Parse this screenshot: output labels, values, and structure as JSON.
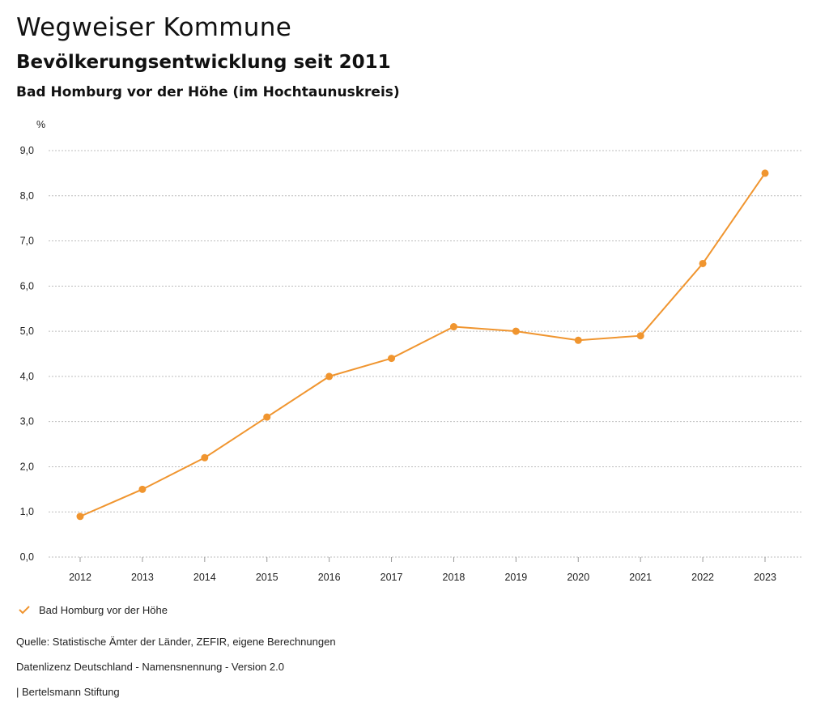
{
  "header": {
    "title": "Wegweiser Kommune",
    "subtitle": "Bevölkerungsentwicklung seit 2011",
    "region": "Bad Homburg vor der Höhe (im Hochtaunuskreis)"
  },
  "chart_data": {
    "type": "line",
    "unit_label": "%",
    "x": [
      "2012",
      "2013",
      "2014",
      "2015",
      "2016",
      "2017",
      "2018",
      "2019",
      "2020",
      "2021",
      "2022",
      "2023"
    ],
    "series": [
      {
        "name": "Bad Homburg vor der Höhe",
        "color": "#f0952f",
        "values": [
          0.9,
          1.5,
          2.2,
          3.1,
          4.0,
          4.4,
          5.1,
          5.0,
          4.8,
          4.9,
          6.5,
          8.5
        ]
      }
    ],
    "ylim": [
      0,
      9
    ],
    "yticks": [
      "0,0",
      "1,0",
      "2,0",
      "3,0",
      "4,0",
      "5,0",
      "6,0",
      "7,0",
      "8,0",
      "9,0"
    ],
    "grid": true,
    "legend_position": "bottom-left"
  },
  "legend": {
    "label": "Bad Homburg vor der Höhe",
    "icon": "check-icon"
  },
  "footer": {
    "source": "Quelle: Statistische Ämter der Länder, ZEFIR, eigene Berechnungen",
    "license": "Datenlizenz Deutschland - Namensnennung - Version 2.0",
    "publisher": "| Bertelsmann Stiftung"
  }
}
